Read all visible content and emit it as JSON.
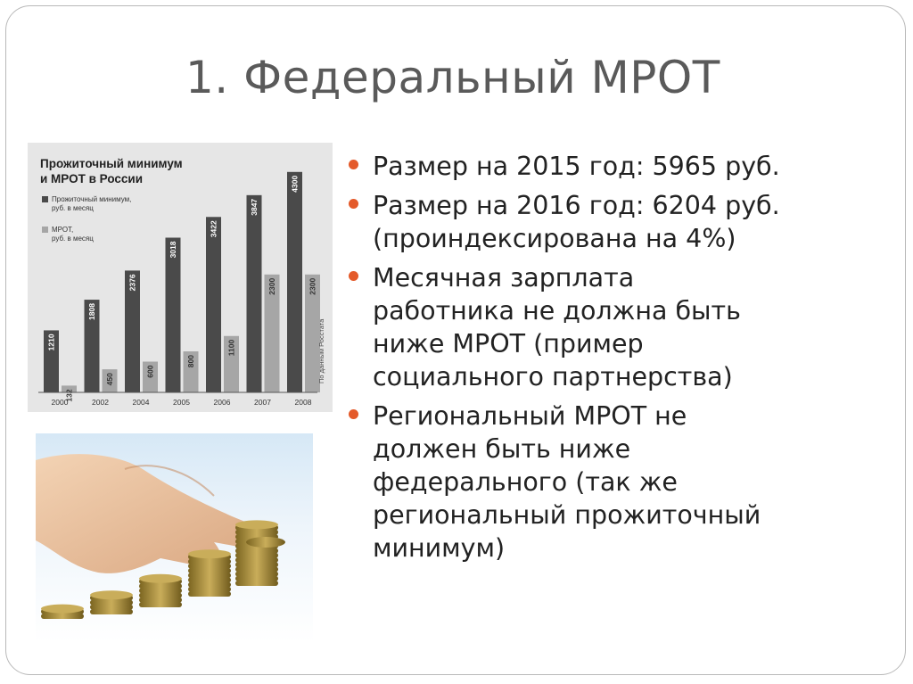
{
  "slide": {
    "title": "1. Федеральный МРОТ",
    "bullets": [
      {
        "lines": [
          "Размер на 2015 год: 5965 руб."
        ]
      },
      {
        "lines": [
          "Размер на 2016 год: 6204 руб.",
          "(проиндексирована на 4%)"
        ]
      },
      {
        "lines": [
          "Месячная зарплата",
          "работника не должна быть",
          "ниже МРОТ (пример",
          "социального партнерства)"
        ]
      },
      {
        "lines": [
          "Региональный МРОТ не",
          "должен быть ниже",
          "федерального (так же",
          "региональный прожиточный",
          "минимум)"
        ]
      }
    ]
  },
  "chart_data": {
    "type": "bar",
    "title": "Прожиточный минимум и МРОТ в России",
    "categories": [
      "2000",
      "2002",
      "2004",
      "2005",
      "2006",
      "2007",
      "2008"
    ],
    "series": [
      {
        "name": "Прожиточный минимум, руб. в месяц",
        "values": [
          1210,
          1808,
          2376,
          3018,
          3422,
          3847,
          4300
        ]
      },
      {
        "name": "МРОТ, руб. в месяц",
        "values": [
          132,
          450,
          600,
          800,
          1100,
          2300,
          2300
        ]
      }
    ],
    "ylim": [
      0,
      4500
    ],
    "source": "По данным Росстата",
    "colors": {
      "series1": "#4a4a4a",
      "series2": "#a6a6a6"
    }
  },
  "photo": {
    "icon": "hand-stacking-coins-photo"
  }
}
